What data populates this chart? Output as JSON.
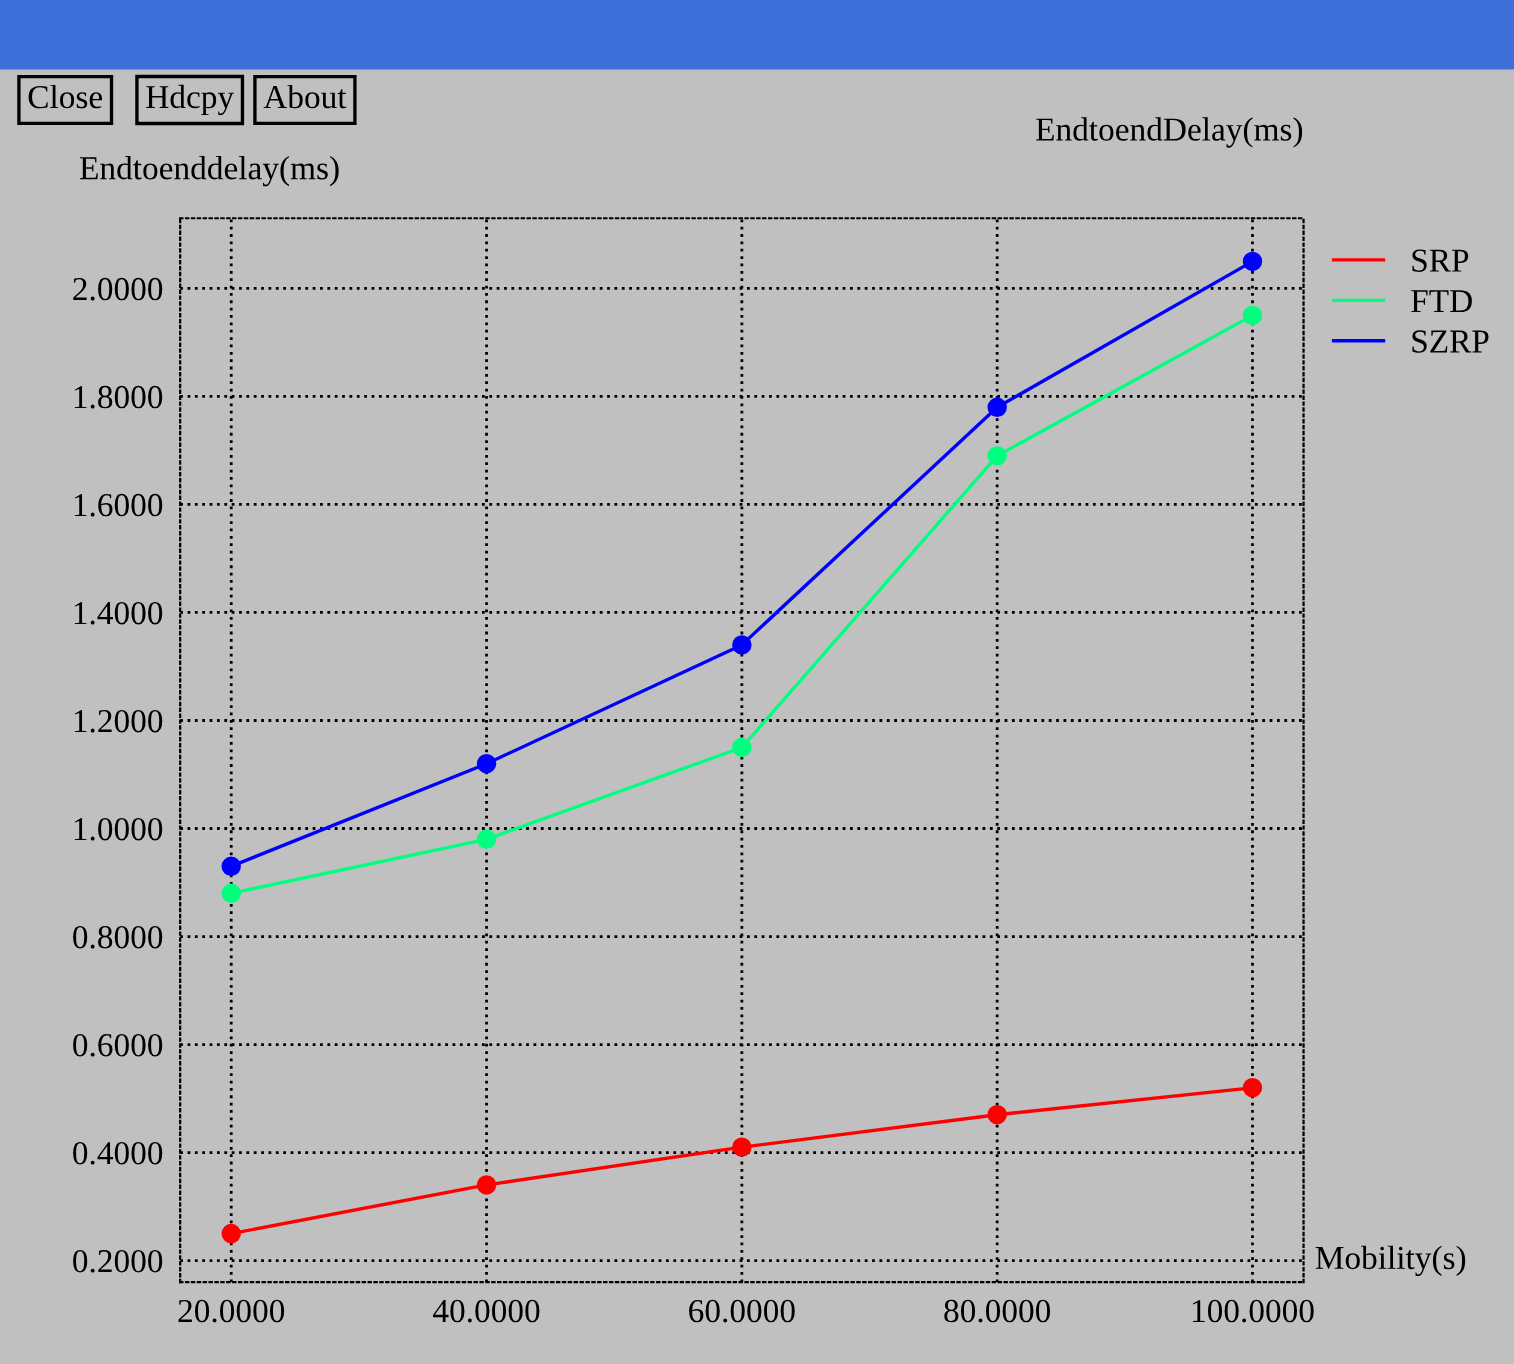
{
  "chart_data": {
    "type": "line",
    "title": "EndtoendDelay(ms)",
    "ylabel": "Endtoenddelay(ms)",
    "xlabel": "Mobility(s)",
    "annotations": [
      "Close",
      "Hdcpy",
      "About"
    ],
    "x": [
      20,
      40,
      60,
      80,
      100
    ],
    "series": [
      {
        "name": "SRP",
        "color": "#ff0000",
        "values": [
          0.25,
          0.34,
          0.41,
          0.47,
          0.52
        ]
      },
      {
        "name": "FTD",
        "color": "#00ff7f",
        "values": [
          0.88,
          0.98,
          1.15,
          1.69,
          1.95
        ]
      },
      {
        "name": "SZRP",
        "color": "#0000ff",
        "values": [
          0.93,
          1.12,
          1.34,
          1.78,
          2.05
        ]
      }
    ],
    "xlim": [
      16,
      104
    ],
    "ylim": [
      0.16,
      2.13
    ],
    "xticks": [
      {
        "value": 20,
        "label": "20.0000"
      },
      {
        "value": 40,
        "label": "40.0000"
      },
      {
        "value": 60,
        "label": "60.0000"
      },
      {
        "value": 80,
        "label": "80.0000"
      },
      {
        "value": 100,
        "label": "100.0000"
      }
    ],
    "yticks": [
      {
        "value": 0.2,
        "label": "0.2000"
      },
      {
        "value": 0.4,
        "label": "0.4000"
      },
      {
        "value": 0.6,
        "label": "0.6000"
      },
      {
        "value": 0.8,
        "label": "0.8000"
      },
      {
        "value": 1.0,
        "label": "1.0000"
      },
      {
        "value": 1.2,
        "label": "1.2000"
      },
      {
        "value": 1.4,
        "label": "1.4000"
      },
      {
        "value": 1.6,
        "label": "1.6000"
      },
      {
        "value": 1.8,
        "label": "1.8000"
      },
      {
        "value": 2.0,
        "label": "2.0000"
      }
    ],
    "grid": true,
    "legend": "right",
    "marker": "circle",
    "line_style": "solid"
  }
}
